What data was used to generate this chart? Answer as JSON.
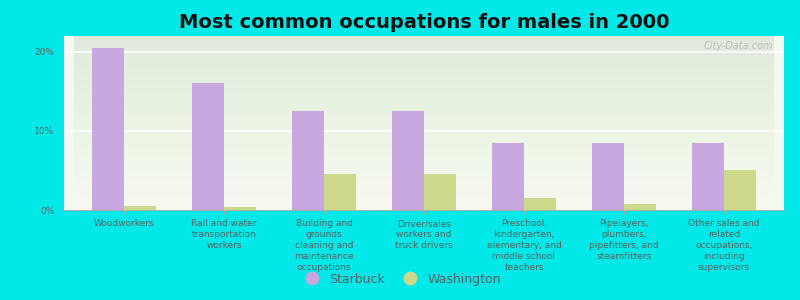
{
  "title": "Most common occupations for males in 2000",
  "categories": [
    "Woodworkers",
    "Rail and water\ntransportation\nworkers",
    "Building and\ngrounds\ncleaning and\nmaintenance\noccupations",
    "Driver/sales\nworkers and\ntruck drivers",
    "Preschool,\nkindergarten,\nelementary, and\nmiddle school\nteachers",
    "Pipelayers,\nplumbers,\npipefitters, and\nsteamfitters",
    "Other sales and\nrelated\noccupations,\nincluding\nsupervisors"
  ],
  "starbuck_values": [
    20.5,
    16.0,
    12.5,
    12.5,
    8.5,
    8.5,
    8.5
  ],
  "washington_values": [
    0.5,
    0.4,
    4.5,
    4.5,
    1.5,
    0.8,
    5.0
  ],
  "starbuck_color": "#c9a8e0",
  "washington_color": "#ccd98a",
  "background_outer": "#00e8e8",
  "background_inner_top": "#f5f8ee",
  "background_inner_bottom": "#e8f0d8",
  "ylim": [
    0,
    22
  ],
  "yticks": [
    0,
    10,
    20
  ],
  "ytick_labels": [
    "0%",
    "10%",
    "20%"
  ],
  "bar_width": 0.32,
  "title_fontsize": 14,
  "tick_fontsize": 6.5,
  "legend_fontsize": 9,
  "watermark": "City-Data.com",
  "axis_label_color": "#606060"
}
